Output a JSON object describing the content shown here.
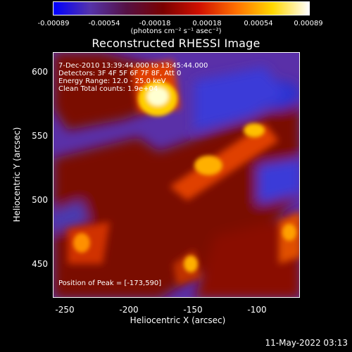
{
  "colorbar": {
    "ticks": [
      "-0.00089",
      "-0.00054",
      "-0.00018",
      "0.00018",
      "0.00054",
      "0.00089"
    ],
    "units_text": "(photons cm⁻² s⁻¹ asec⁻²)",
    "colors": [
      "#0000ff",
      "#5533aa",
      "#551144",
      "#7a0000",
      "#d01000",
      "#ff7000",
      "#ffd800",
      "#ffffff"
    ]
  },
  "title": "Reconstructed RHESSI Image",
  "info": {
    "time": "7-Dec-2010 13:39:44.000 to 13:45:44.000",
    "detectors": "Detectors: 3F 4F 5F 6F 7F 8F, Att 0",
    "energy": "Energy Range: 12.0 - 25.0 keV",
    "clean": "Clean    Total counts: 1.9e+04",
    "peak": "Position of Peak = [-173,590]"
  },
  "axes": {
    "xlabel": "Heliocentric X (arcsec)",
    "ylabel": "Heliocentric Y (arcsec)",
    "xticks": [
      "-250",
      "-200",
      "-150",
      "-100"
    ],
    "yticks": [
      "600",
      "550",
      "500",
      "450"
    ]
  },
  "footer": "11-May-2022 03:13"
}
